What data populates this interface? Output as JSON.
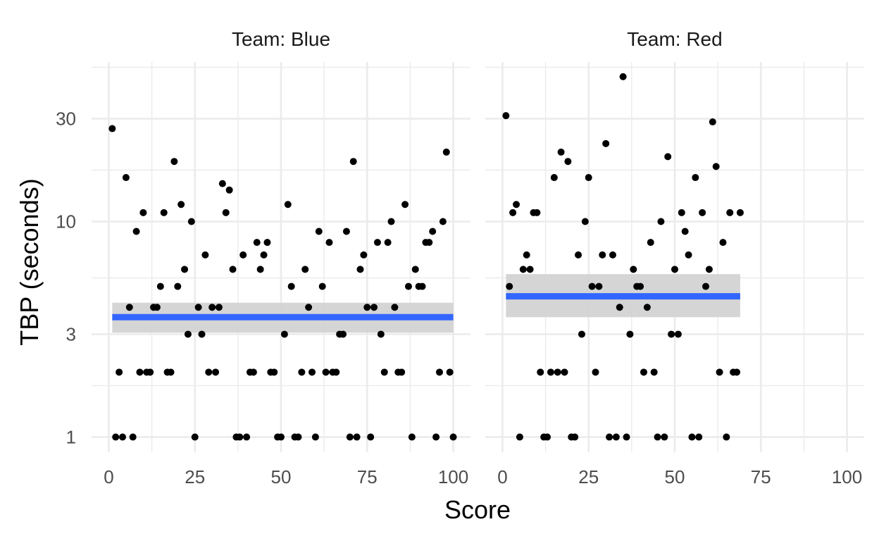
{
  "chart_data": {
    "type": "scatter",
    "xlabel": "Score",
    "ylabel": "TBP (seconds)",
    "y_scale": "log10",
    "x_ticks": [
      0,
      25,
      50,
      75,
      100
    ],
    "y_ticks": [
      1,
      3,
      10,
      30
    ],
    "xlim": [
      -5,
      105
    ],
    "ylim": [
      0.85,
      55
    ],
    "grid": true,
    "colors": {
      "points": "#000000",
      "fit_line": "#3366ff",
      "ribbon": "#d3d3d3"
    },
    "panels": [
      {
        "strip": "Team: Blue",
        "fit": {
          "x": [
            1,
            100
          ],
          "y": [
            3.6,
            3.6
          ],
          "lower": [
            3.05,
            3.05
          ],
          "upper": [
            4.2,
            4.2
          ]
        },
        "points": [
          [
            1,
            27
          ],
          [
            2,
            1
          ],
          [
            3,
            2
          ],
          [
            4,
            1
          ],
          [
            5,
            16
          ],
          [
            6,
            4
          ],
          [
            7,
            1
          ],
          [
            8,
            9
          ],
          [
            9,
            2
          ],
          [
            10,
            11
          ],
          [
            11,
            2
          ],
          [
            12,
            2
          ],
          [
            13,
            4
          ],
          [
            14,
            4
          ],
          [
            15,
            5
          ],
          [
            16,
            11
          ],
          [
            17,
            2
          ],
          [
            18,
            2
          ],
          [
            19,
            19
          ],
          [
            20,
            5
          ],
          [
            21,
            12
          ],
          [
            22,
            6
          ],
          [
            23,
            3
          ],
          [
            24,
            10
          ],
          [
            25,
            1
          ],
          [
            26,
            4
          ],
          [
            27,
            3
          ],
          [
            28,
            7
          ],
          [
            29,
            2
          ],
          [
            30,
            4
          ],
          [
            31,
            2
          ],
          [
            32,
            4
          ],
          [
            33,
            15
          ],
          [
            34,
            11
          ],
          [
            35,
            14
          ],
          [
            36,
            6
          ],
          [
            37,
            1
          ],
          [
            38,
            1
          ],
          [
            39,
            7
          ],
          [
            40,
            1
          ],
          [
            41,
            2
          ],
          [
            42,
            2
          ],
          [
            43,
            8
          ],
          [
            44,
            6
          ],
          [
            45,
            7
          ],
          [
            46,
            8
          ],
          [
            47,
            2
          ],
          [
            48,
            2
          ],
          [
            49,
            1
          ],
          [
            50,
            1
          ],
          [
            51,
            3
          ],
          [
            52,
            12
          ],
          [
            53,
            5
          ],
          [
            54,
            1
          ],
          [
            55,
            1
          ],
          [
            56,
            2
          ],
          [
            57,
            6
          ],
          [
            58,
            4
          ],
          [
            59,
            2
          ],
          [
            60,
            1
          ],
          [
            61,
            9
          ],
          [
            62,
            5
          ],
          [
            63,
            2
          ],
          [
            64,
            8
          ],
          [
            65,
            2
          ],
          [
            66,
            2
          ],
          [
            67,
            3
          ],
          [
            68,
            3
          ],
          [
            69,
            9
          ],
          [
            70,
            1
          ],
          [
            71,
            19
          ],
          [
            72,
            1
          ],
          [
            73,
            6
          ],
          [
            74,
            7
          ],
          [
            75,
            4
          ],
          [
            76,
            1
          ],
          [
            77,
            4
          ],
          [
            78,
            8
          ],
          [
            79,
            3
          ],
          [
            80,
            2
          ],
          [
            81,
            8
          ],
          [
            82,
            10
          ],
          [
            83,
            4
          ],
          [
            84,
            2
          ],
          [
            85,
            2
          ],
          [
            86,
            12
          ],
          [
            87,
            5
          ],
          [
            88,
            1
          ],
          [
            89,
            6
          ],
          [
            90,
            5
          ],
          [
            91,
            5
          ],
          [
            92,
            8
          ],
          [
            93,
            8
          ],
          [
            94,
            9
          ],
          [
            95,
            1
          ],
          [
            96,
            2
          ],
          [
            97,
            10
          ],
          [
            98,
            21
          ],
          [
            99,
            2
          ],
          [
            100,
            1
          ]
        ]
      },
      {
        "strip": "Team: Red",
        "fit": {
          "x": [
            1,
            69
          ],
          "y": [
            4.5,
            4.5
          ],
          "lower": [
            3.6,
            3.6
          ],
          "upper": [
            5.7,
            5.7
          ]
        },
        "points": [
          [
            1,
            31
          ],
          [
            2,
            5
          ],
          [
            3,
            11
          ],
          [
            4,
            12
          ],
          [
            5,
            1
          ],
          [
            6,
            6
          ],
          [
            7,
            7
          ],
          [
            8,
            6
          ],
          [
            9,
            11
          ],
          [
            10,
            11
          ],
          [
            11,
            2
          ],
          [
            12,
            1
          ],
          [
            13,
            1
          ],
          [
            14,
            2
          ],
          [
            15,
            16
          ],
          [
            16,
            2
          ],
          [
            17,
            21
          ],
          [
            18,
            2
          ],
          [
            19,
            19
          ],
          [
            20,
            1
          ],
          [
            21,
            1
          ],
          [
            22,
            7
          ],
          [
            23,
            3
          ],
          [
            24,
            10
          ],
          [
            25,
            16
          ],
          [
            26,
            5
          ],
          [
            27,
            2
          ],
          [
            28,
            5
          ],
          [
            29,
            7
          ],
          [
            30,
            23
          ],
          [
            31,
            1
          ],
          [
            32,
            7
          ],
          [
            33,
            1
          ],
          [
            34,
            4
          ],
          [
            35,
            47
          ],
          [
            36,
            1
          ],
          [
            37,
            3
          ],
          [
            38,
            6
          ],
          [
            39,
            5
          ],
          [
            40,
            5
          ],
          [
            41,
            2
          ],
          [
            42,
            4
          ],
          [
            43,
            8
          ],
          [
            44,
            2
          ],
          [
            45,
            1
          ],
          [
            46,
            10
          ],
          [
            47,
            1
          ],
          [
            48,
            20
          ],
          [
            49,
            3
          ],
          [
            50,
            6
          ],
          [
            51,
            3
          ],
          [
            52,
            11
          ],
          [
            53,
            9
          ],
          [
            54,
            7
          ],
          [
            55,
            1
          ],
          [
            56,
            16
          ],
          [
            57,
            1
          ],
          [
            58,
            11
          ],
          [
            59,
            5
          ],
          [
            60,
            6
          ],
          [
            61,
            29
          ],
          [
            62,
            18
          ],
          [
            63,
            2
          ],
          [
            64,
            8
          ],
          [
            65,
            1
          ],
          [
            66,
            11
          ],
          [
            67,
            2
          ],
          [
            68,
            2
          ],
          [
            69,
            11
          ]
        ]
      }
    ]
  }
}
